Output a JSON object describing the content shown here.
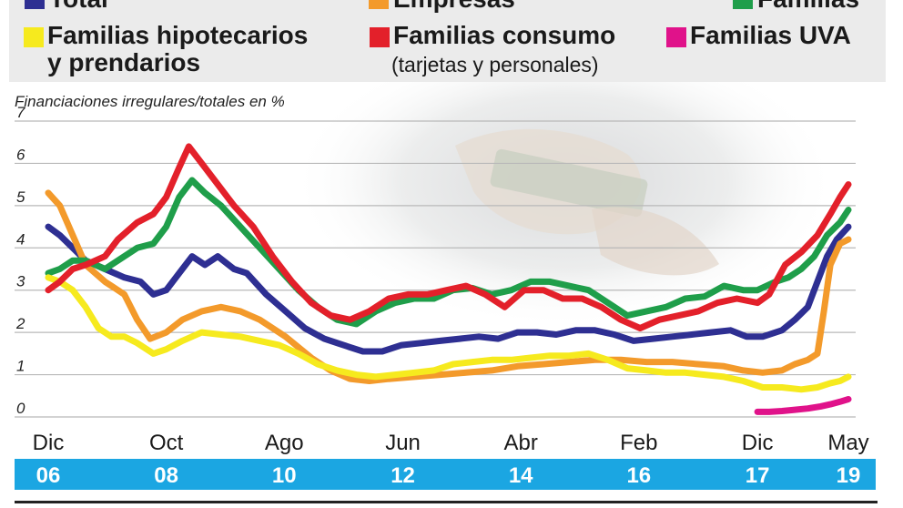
{
  "legend": {
    "items": [
      {
        "key": "total",
        "line1": "Total",
        "line2": "",
        "color": "#2e2f92"
      },
      {
        "key": "empresas",
        "line1": "Empresas",
        "line2": "",
        "color": "#f39a2b"
      },
      {
        "key": "familias",
        "line1": "Familias",
        "line2": "",
        "color": "#1f9e4a"
      },
      {
        "key": "hipotecarios",
        "line1": "Familias hipotecarios",
        "line2": "y prendarios",
        "color": "#f6ea1e"
      },
      {
        "key": "consumo",
        "line1": "Familias consumo",
        "line2": "(tarjetas y personales)",
        "color": "#e3202a"
      },
      {
        "key": "uva",
        "line1": "Familias UVA",
        "line2": "",
        "color": "#e0128a"
      }
    ]
  },
  "chart_data": {
    "type": "line",
    "ylabel": "Financiaciones irregulares/totales en %",
    "ylim": [
      0,
      7
    ],
    "yticks": [
      "0",
      "1",
      "2",
      "3",
      "4",
      "5",
      "6",
      "7"
    ],
    "xlim": [
      2006.92,
      2019.33
    ],
    "xticks": [
      {
        "x": 2006.92,
        "month": "Dic",
        "year": "06"
      },
      {
        "x": 2008.75,
        "month": "Oct",
        "year": "08"
      },
      {
        "x": 2010.58,
        "month": "Ago",
        "year": "10"
      },
      {
        "x": 2012.42,
        "month": "Jun",
        "year": "12"
      },
      {
        "x": 2014.25,
        "month": "Abr",
        "year": "14"
      },
      {
        "x": 2016.08,
        "month": "Feb",
        "year": "16"
      },
      {
        "x": 2017.92,
        "month": "Dic",
        "year": "17"
      },
      {
        "x": 2019.33,
        "month": "May",
        "year": "19"
      }
    ],
    "year_band_color": "#1ba6e2",
    "series": [
      {
        "name": "Total",
        "color": "#2e2f92",
        "points": [
          [
            2006.92,
            4.5
          ],
          [
            2007.1,
            4.3
          ],
          [
            2007.3,
            4.0
          ],
          [
            2007.5,
            3.7
          ],
          [
            2007.8,
            3.5
          ],
          [
            2008.1,
            3.3
          ],
          [
            2008.35,
            3.2
          ],
          [
            2008.55,
            2.9
          ],
          [
            2008.75,
            3.0
          ],
          [
            2008.95,
            3.4
          ],
          [
            2009.15,
            3.8
          ],
          [
            2009.35,
            3.6
          ],
          [
            2009.55,
            3.8
          ],
          [
            2009.8,
            3.5
          ],
          [
            2010.0,
            3.4
          ],
          [
            2010.3,
            2.9
          ],
          [
            2010.6,
            2.5
          ],
          [
            2010.9,
            2.1
          ],
          [
            2011.2,
            1.85
          ],
          [
            2011.5,
            1.7
          ],
          [
            2011.8,
            1.55
          ],
          [
            2012.1,
            1.55
          ],
          [
            2012.4,
            1.7
          ],
          [
            2012.7,
            1.75
          ],
          [
            2013.0,
            1.8
          ],
          [
            2013.3,
            1.85
          ],
          [
            2013.6,
            1.9
          ],
          [
            2013.9,
            1.85
          ],
          [
            2014.2,
            2.0
          ],
          [
            2014.5,
            2.0
          ],
          [
            2014.8,
            1.95
          ],
          [
            2015.1,
            2.05
          ],
          [
            2015.4,
            2.05
          ],
          [
            2015.7,
            1.95
          ],
          [
            2016.0,
            1.8
          ],
          [
            2016.3,
            1.85
          ],
          [
            2016.6,
            1.9
          ],
          [
            2016.9,
            1.95
          ],
          [
            2017.2,
            2.0
          ],
          [
            2017.5,
            2.05
          ],
          [
            2017.75,
            1.9
          ],
          [
            2018.0,
            1.9
          ],
          [
            2018.3,
            2.05
          ],
          [
            2018.5,
            2.3
          ],
          [
            2018.7,
            2.6
          ],
          [
            2018.85,
            3.2
          ],
          [
            2019.0,
            3.8
          ],
          [
            2019.15,
            4.2
          ],
          [
            2019.33,
            4.5
          ]
        ]
      },
      {
        "name": "Empresas",
        "color": "#f39a2b",
        "points": [
          [
            2006.92,
            5.3
          ],
          [
            2007.1,
            5.0
          ],
          [
            2007.3,
            4.3
          ],
          [
            2007.5,
            3.6
          ],
          [
            2007.8,
            3.2
          ],
          [
            2008.1,
            2.9
          ],
          [
            2008.3,
            2.3
          ],
          [
            2008.5,
            1.85
          ],
          [
            2008.75,
            2.0
          ],
          [
            2009.0,
            2.3
          ],
          [
            2009.3,
            2.5
          ],
          [
            2009.6,
            2.6
          ],
          [
            2009.9,
            2.5
          ],
          [
            2010.2,
            2.3
          ],
          [
            2010.6,
            1.9
          ],
          [
            2011.0,
            1.4
          ],
          [
            2011.3,
            1.1
          ],
          [
            2011.6,
            0.9
          ],
          [
            2011.9,
            0.85
          ],
          [
            2012.2,
            0.9
          ],
          [
            2012.6,
            0.95
          ],
          [
            2013.0,
            1.0
          ],
          [
            2013.4,
            1.05
          ],
          [
            2013.8,
            1.1
          ],
          [
            2014.2,
            1.2
          ],
          [
            2014.6,
            1.25
          ],
          [
            2015.0,
            1.3
          ],
          [
            2015.4,
            1.35
          ],
          [
            2015.8,
            1.35
          ],
          [
            2016.2,
            1.3
          ],
          [
            2016.6,
            1.3
          ],
          [
            2017.0,
            1.25
          ],
          [
            2017.4,
            1.2
          ],
          [
            2017.7,
            1.1
          ],
          [
            2018.0,
            1.05
          ],
          [
            2018.3,
            1.1
          ],
          [
            2018.5,
            1.25
          ],
          [
            2018.7,
            1.35
          ],
          [
            2018.85,
            1.5
          ],
          [
            2018.95,
            2.5
          ],
          [
            2019.05,
            3.6
          ],
          [
            2019.2,
            4.1
          ],
          [
            2019.33,
            4.2
          ]
        ]
      },
      {
        "name": "Familias",
        "color": "#1f9e4a",
        "points": [
          [
            2006.92,
            3.4
          ],
          [
            2007.1,
            3.5
          ],
          [
            2007.3,
            3.7
          ],
          [
            2007.5,
            3.7
          ],
          [
            2007.8,
            3.5
          ],
          [
            2008.0,
            3.7
          ],
          [
            2008.3,
            4.0
          ],
          [
            2008.55,
            4.1
          ],
          [
            2008.75,
            4.5
          ],
          [
            2008.95,
            5.2
          ],
          [
            2009.15,
            5.6
          ],
          [
            2009.35,
            5.3
          ],
          [
            2009.6,
            5.0
          ],
          [
            2009.9,
            4.5
          ],
          [
            2010.2,
            4.0
          ],
          [
            2010.5,
            3.5
          ],
          [
            2010.8,
            3.0
          ],
          [
            2011.1,
            2.6
          ],
          [
            2011.4,
            2.3
          ],
          [
            2011.7,
            2.2
          ],
          [
            2012.0,
            2.5
          ],
          [
            2012.3,
            2.7
          ],
          [
            2012.6,
            2.8
          ],
          [
            2012.9,
            2.8
          ],
          [
            2013.2,
            3.0
          ],
          [
            2013.5,
            3.05
          ],
          [
            2013.8,
            2.9
          ],
          [
            2014.1,
            3.0
          ],
          [
            2014.4,
            3.2
          ],
          [
            2014.7,
            3.2
          ],
          [
            2015.0,
            3.1
          ],
          [
            2015.3,
            3.0
          ],
          [
            2015.6,
            2.7
          ],
          [
            2015.9,
            2.4
          ],
          [
            2016.2,
            2.5
          ],
          [
            2016.5,
            2.6
          ],
          [
            2016.8,
            2.8
          ],
          [
            2017.1,
            2.85
          ],
          [
            2017.4,
            3.1
          ],
          [
            2017.7,
            3.0
          ],
          [
            2017.92,
            3.0
          ],
          [
            2018.2,
            3.2
          ],
          [
            2018.4,
            3.3
          ],
          [
            2018.6,
            3.5
          ],
          [
            2018.8,
            3.8
          ],
          [
            2019.0,
            4.3
          ],
          [
            2019.2,
            4.6
          ],
          [
            2019.33,
            4.9
          ]
        ]
      },
      {
        "name": "Familias hipotecarios y prendarios",
        "color": "#f6ea1e",
        "points": [
          [
            2006.92,
            3.3
          ],
          [
            2007.1,
            3.2
          ],
          [
            2007.3,
            3.0
          ],
          [
            2007.5,
            2.6
          ],
          [
            2007.7,
            2.1
          ],
          [
            2007.9,
            1.9
          ],
          [
            2008.1,
            1.9
          ],
          [
            2008.3,
            1.75
          ],
          [
            2008.55,
            1.5
          ],
          [
            2008.75,
            1.6
          ],
          [
            2009.0,
            1.8
          ],
          [
            2009.3,
            2.0
          ],
          [
            2009.6,
            1.95
          ],
          [
            2009.9,
            1.9
          ],
          [
            2010.2,
            1.8
          ],
          [
            2010.5,
            1.7
          ],
          [
            2010.8,
            1.5
          ],
          [
            2011.1,
            1.25
          ],
          [
            2011.4,
            1.1
          ],
          [
            2011.7,
            1.0
          ],
          [
            2012.0,
            0.95
          ],
          [
            2012.3,
            1.0
          ],
          [
            2012.6,
            1.05
          ],
          [
            2012.9,
            1.1
          ],
          [
            2013.2,
            1.25
          ],
          [
            2013.5,
            1.3
          ],
          [
            2013.8,
            1.35
          ],
          [
            2014.1,
            1.35
          ],
          [
            2014.4,
            1.4
          ],
          [
            2014.7,
            1.45
          ],
          [
            2015.0,
            1.45
          ],
          [
            2015.3,
            1.5
          ],
          [
            2015.6,
            1.35
          ],
          [
            2015.9,
            1.15
          ],
          [
            2016.2,
            1.1
          ],
          [
            2016.5,
            1.05
          ],
          [
            2016.8,
            1.05
          ],
          [
            2017.1,
            1.0
          ],
          [
            2017.4,
            0.95
          ],
          [
            2017.7,
            0.85
          ],
          [
            2018.0,
            0.7
          ],
          [
            2018.3,
            0.7
          ],
          [
            2018.6,
            0.65
          ],
          [
            2018.85,
            0.7
          ],
          [
            2019.05,
            0.8
          ],
          [
            2019.2,
            0.85
          ],
          [
            2019.33,
            0.95
          ]
        ]
      },
      {
        "name": "Familias consumo (tarjetas y personales)",
        "color": "#e3202a",
        "points": [
          [
            2006.92,
            3.0
          ],
          [
            2007.1,
            3.2
          ],
          [
            2007.3,
            3.5
          ],
          [
            2007.5,
            3.6
          ],
          [
            2007.8,
            3.8
          ],
          [
            2008.0,
            4.2
          ],
          [
            2008.3,
            4.6
          ],
          [
            2008.55,
            4.8
          ],
          [
            2008.75,
            5.2
          ],
          [
            2008.95,
            5.9
          ],
          [
            2009.1,
            6.4
          ],
          [
            2009.3,
            6.0
          ],
          [
            2009.55,
            5.5
          ],
          [
            2009.8,
            5.0
          ],
          [
            2010.1,
            4.5
          ],
          [
            2010.4,
            3.8
          ],
          [
            2010.7,
            3.2
          ],
          [
            2011.0,
            2.7
          ],
          [
            2011.3,
            2.4
          ],
          [
            2011.6,
            2.3
          ],
          [
            2011.9,
            2.5
          ],
          [
            2012.2,
            2.8
          ],
          [
            2012.5,
            2.9
          ],
          [
            2012.8,
            2.9
          ],
          [
            2013.1,
            3.0
          ],
          [
            2013.4,
            3.1
          ],
          [
            2013.7,
            2.9
          ],
          [
            2014.0,
            2.6
          ],
          [
            2014.3,
            3.0
          ],
          [
            2014.6,
            3.0
          ],
          [
            2014.9,
            2.8
          ],
          [
            2015.2,
            2.8
          ],
          [
            2015.5,
            2.6
          ],
          [
            2015.8,
            2.3
          ],
          [
            2016.1,
            2.1
          ],
          [
            2016.4,
            2.3
          ],
          [
            2016.7,
            2.4
          ],
          [
            2017.0,
            2.5
          ],
          [
            2017.3,
            2.7
          ],
          [
            2017.6,
            2.8
          ],
          [
            2017.92,
            2.7
          ],
          [
            2018.1,
            2.9
          ],
          [
            2018.35,
            3.6
          ],
          [
            2018.6,
            3.9
          ],
          [
            2018.85,
            4.3
          ],
          [
            2019.05,
            4.8
          ],
          [
            2019.2,
            5.2
          ],
          [
            2019.33,
            5.5
          ]
        ]
      },
      {
        "name": "Familias UVA",
        "color": "#e0128a",
        "points": [
          [
            2017.92,
            0.12
          ],
          [
            2018.1,
            0.12
          ],
          [
            2018.3,
            0.14
          ],
          [
            2018.5,
            0.17
          ],
          [
            2018.7,
            0.2
          ],
          [
            2018.9,
            0.25
          ],
          [
            2019.05,
            0.3
          ],
          [
            2019.2,
            0.36
          ],
          [
            2019.33,
            0.42
          ]
        ]
      }
    ]
  }
}
